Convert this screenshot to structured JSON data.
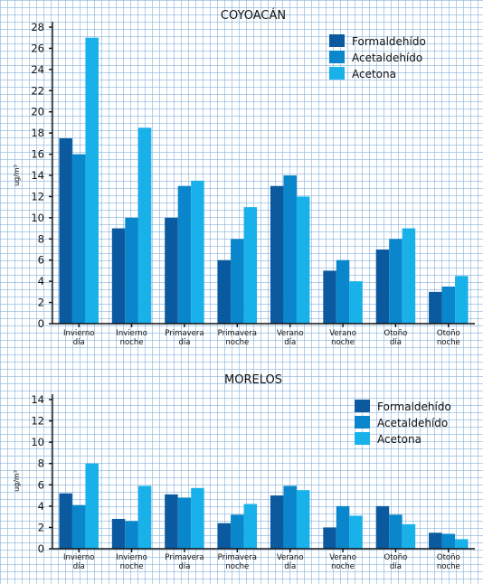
{
  "colors": {
    "formaldehido": "#0b5aa0",
    "acetaldehido": "#0a86cc",
    "acetona": "#19b1ea"
  },
  "chart_data": [
    {
      "type": "bar",
      "title": "COYOACÁN",
      "ylabel": "ug/m³",
      "xlabel": "",
      "ylim": [
        0,
        28
      ],
      "yticks": [
        0,
        2,
        4,
        6,
        8,
        10,
        12,
        14,
        16,
        18,
        20,
        22,
        24,
        26,
        28
      ],
      "legend_position": "top-right",
      "grid": true,
      "categories": [
        [
          "Invierno",
          "día"
        ],
        [
          "Invierno",
          "noche"
        ],
        [
          "Primavera",
          "día"
        ],
        [
          "Primavera",
          "noche"
        ],
        [
          "Verano",
          "día"
        ],
        [
          "Verano",
          "noche"
        ],
        [
          "Otoño",
          "día"
        ],
        [
          "Otoño",
          "noche"
        ]
      ],
      "series": [
        {
          "name": "Formaldehído",
          "values": [
            17.5,
            9,
            10,
            6,
            13,
            5,
            7,
            3
          ]
        },
        {
          "name": "Acetaldehído",
          "values": [
            16,
            10,
            13,
            8,
            14,
            6,
            8,
            3.5
          ]
        },
        {
          "name": "Acetona",
          "values": [
            27,
            18.5,
            13.5,
            11,
            12,
            4,
            9,
            4.5
          ]
        }
      ]
    },
    {
      "type": "bar",
      "title": "MORELOS",
      "ylabel": "ug/m³",
      "xlabel": "",
      "ylim": [
        0,
        14
      ],
      "yticks": [
        0,
        2,
        4,
        6,
        8,
        10,
        12,
        14
      ],
      "legend_position": "top-right",
      "grid": true,
      "categories": [
        [
          "Invierno",
          "día"
        ],
        [
          "Invierno",
          "noche"
        ],
        [
          "Primavera",
          "día"
        ],
        [
          "Primavera",
          "noche"
        ],
        [
          "Verano",
          "día"
        ],
        [
          "Verano",
          "noche"
        ],
        [
          "Otoño",
          "día"
        ],
        [
          "Otoño",
          "noche"
        ]
      ],
      "series": [
        {
          "name": "Formaldehído",
          "values": [
            5.2,
            2.8,
            5.1,
            2.4,
            5,
            2,
            4,
            1.5
          ]
        },
        {
          "name": "Acetaldehído",
          "values": [
            4.1,
            2.6,
            4.8,
            3.2,
            5.9,
            4,
            3.2,
            1.4
          ]
        },
        {
          "name": "Acetona",
          "values": [
            8,
            5.9,
            5.7,
            4.2,
            5.5,
            3.1,
            2.3,
            0.9
          ]
        }
      ]
    }
  ]
}
